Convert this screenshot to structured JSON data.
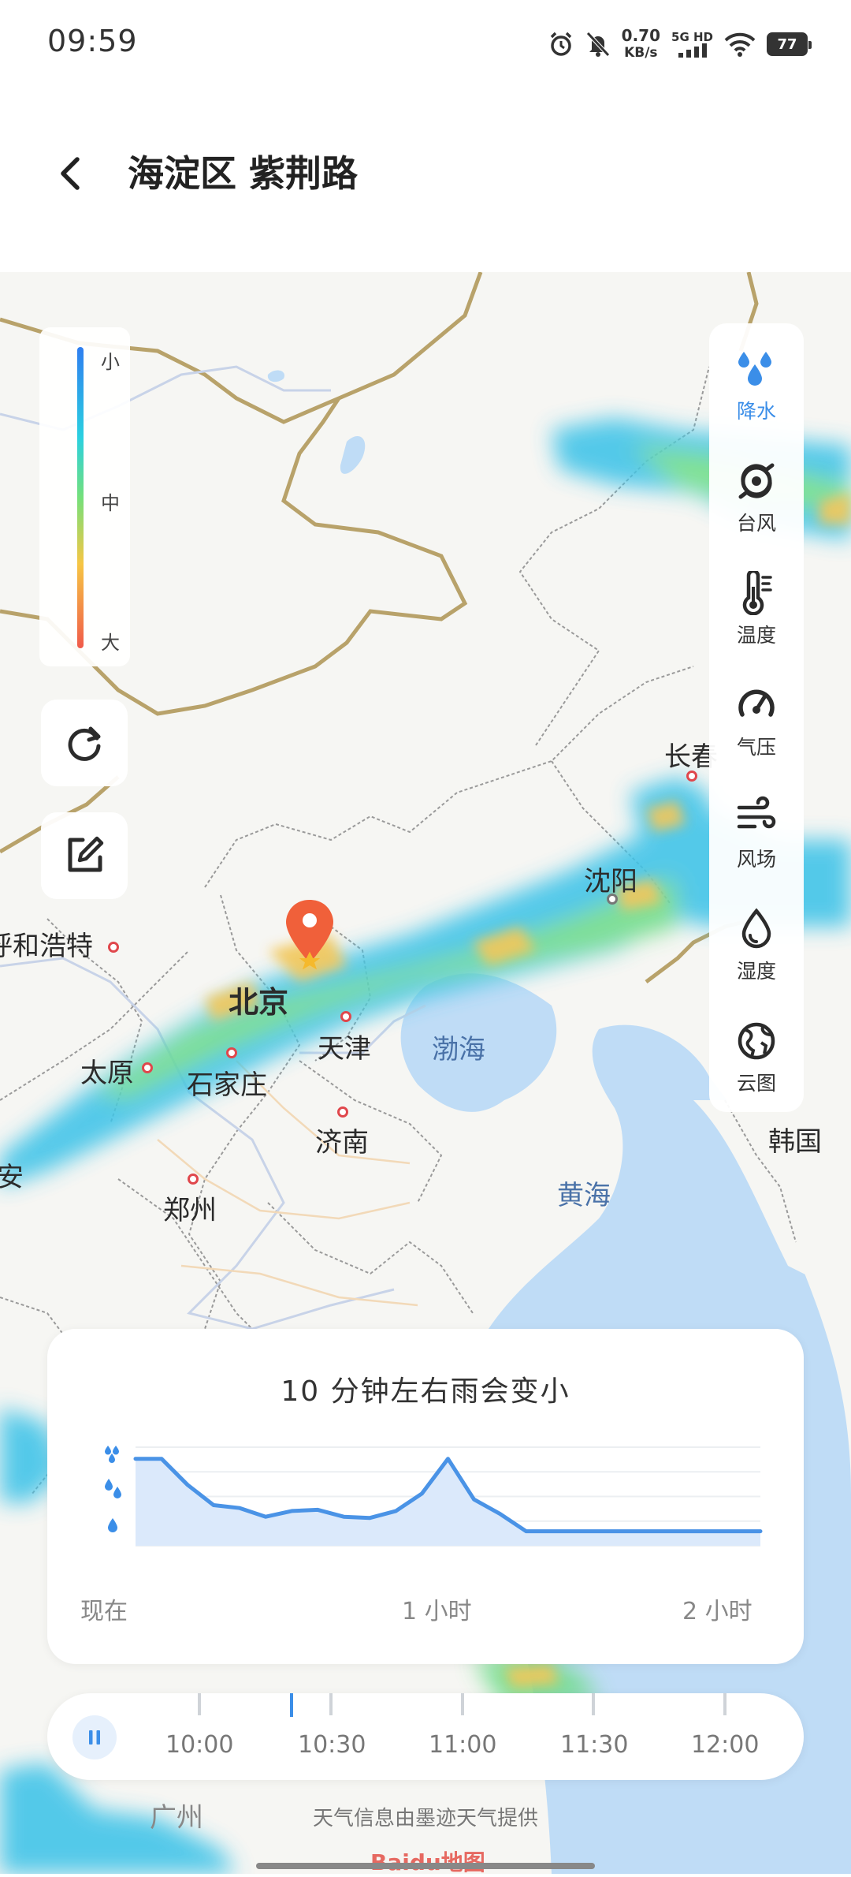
{
  "status_bar": {
    "time": "09:59",
    "speed_value": "0.70",
    "speed_unit": "KB/s",
    "network_type": "5G HD",
    "battery": "77"
  },
  "header": {
    "title": "海淀区 紫荆路"
  },
  "legend": {
    "low": "小",
    "mid": "中",
    "high": "大"
  },
  "map": {
    "cities": {
      "hohhot": "呼和浩特",
      "beijing": "北京",
      "tianjin": "天津",
      "taiyuan": "太原",
      "shijiazhuang": "石家庄",
      "jinan": "济南",
      "zhengzhou": "郑州",
      "shenyang": "沈阳",
      "changchun": "长春",
      "xian_partial": "安",
      "korea": "韩国",
      "guangzhou_partial": "广州"
    },
    "seas": {
      "bohai": "渤海",
      "yellow_sea": "黄海"
    }
  },
  "layers": [
    {
      "label": "降水",
      "icon": "precipitation-icon",
      "active": true
    },
    {
      "label": "台风",
      "icon": "typhoon-icon",
      "active": false
    },
    {
      "label": "温度",
      "icon": "thermometer-icon",
      "active": false
    },
    {
      "label": "气压",
      "icon": "pressure-gauge-icon",
      "active": false
    },
    {
      "label": "风场",
      "icon": "wind-icon",
      "active": false
    },
    {
      "label": "湿度",
      "icon": "humidity-drop-icon",
      "active": false
    },
    {
      "label": "云图",
      "icon": "globe-icon",
      "active": false
    }
  ],
  "forecast": {
    "headline": "10 分钟左右雨会变小",
    "time_labels": [
      "现在",
      "1 小时",
      "2 小时"
    ]
  },
  "chart_data": {
    "type": "area",
    "title": "10 分钟左右雨会变小",
    "x_labels": [
      "现在",
      "1 小时",
      "2 小时"
    ],
    "y_levels": [
      "小",
      "中",
      "大"
    ],
    "x_minutes": [
      0,
      5,
      10,
      15,
      20,
      25,
      30,
      35,
      40,
      45,
      50,
      55,
      60,
      65,
      70,
      75,
      80,
      85,
      90,
      95,
      100,
      105,
      110,
      115,
      120
    ],
    "values": [
      2.0,
      2.0,
      1.55,
      1.2,
      1.15,
      1.0,
      1.1,
      1.12,
      1.0,
      0.98,
      1.1,
      1.4,
      2.0,
      1.3,
      1.05,
      0.75,
      0.75,
      0.75,
      0.75,
      0.75,
      0.75,
      0.75,
      0.75,
      0.75,
      0.75
    ],
    "ylim": [
      0.5,
      2.2
    ]
  },
  "timeline": {
    "times": [
      "10:00",
      "10:30",
      "11:00",
      "11:30",
      "12:00"
    ],
    "current_position": 0.26
  },
  "credit": "天气信息由墨迹天气提供",
  "map_logo": "Baidu地图",
  "colors": {
    "accent": "#3b8ee8",
    "pin": "#f0603a",
    "chart_fill": "#dbe9fb"
  }
}
